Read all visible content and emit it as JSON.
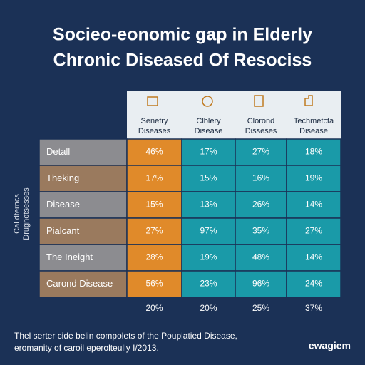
{
  "title": [
    "Socieo-eonomic gap in Elderly",
    "Chronic Diseased Of Resociss"
  ],
  "side_label": [
    "Cal dterncs",
    "Drugnotsesses"
  ],
  "table": {
    "columns": [
      [
        "Senefry",
        "Diseases"
      ],
      [
        "Clblery",
        "Disease"
      ],
      [
        "Clorond",
        "Disseses"
      ],
      [
        "Techmetcta",
        "Disease"
      ]
    ],
    "rows": [
      {
        "label": "Detall",
        "cells": [
          "46%",
          "17%",
          "27%",
          "18%"
        ]
      },
      {
        "label": "Theking",
        "cells": [
          "17%",
          "15%",
          "16%",
          "19%"
        ]
      },
      {
        "label": "Disease",
        "cells": [
          "15%",
          "13%",
          "26%",
          "14%"
        ]
      },
      {
        "label": "Pialcant",
        "cells": [
          "27%",
          "97%",
          "35%",
          "27%"
        ]
      },
      {
        "label": "The Ineight",
        "cells": [
          "28%",
          "19%",
          "48%",
          "14%"
        ]
      },
      {
        "label": "Carond Disease",
        "cells": [
          "56%",
          "23%",
          "96%",
          "24%"
        ]
      }
    ],
    "totals": [
      "20%",
      "20%",
      "25%",
      "37%"
    ]
  },
  "footer": [
    "Thel serter cide belin compolets of the Pouplatied Disease,",
    "eromanity of caroil eperolteully I/2013."
  ],
  "brand": "ewagiem"
}
